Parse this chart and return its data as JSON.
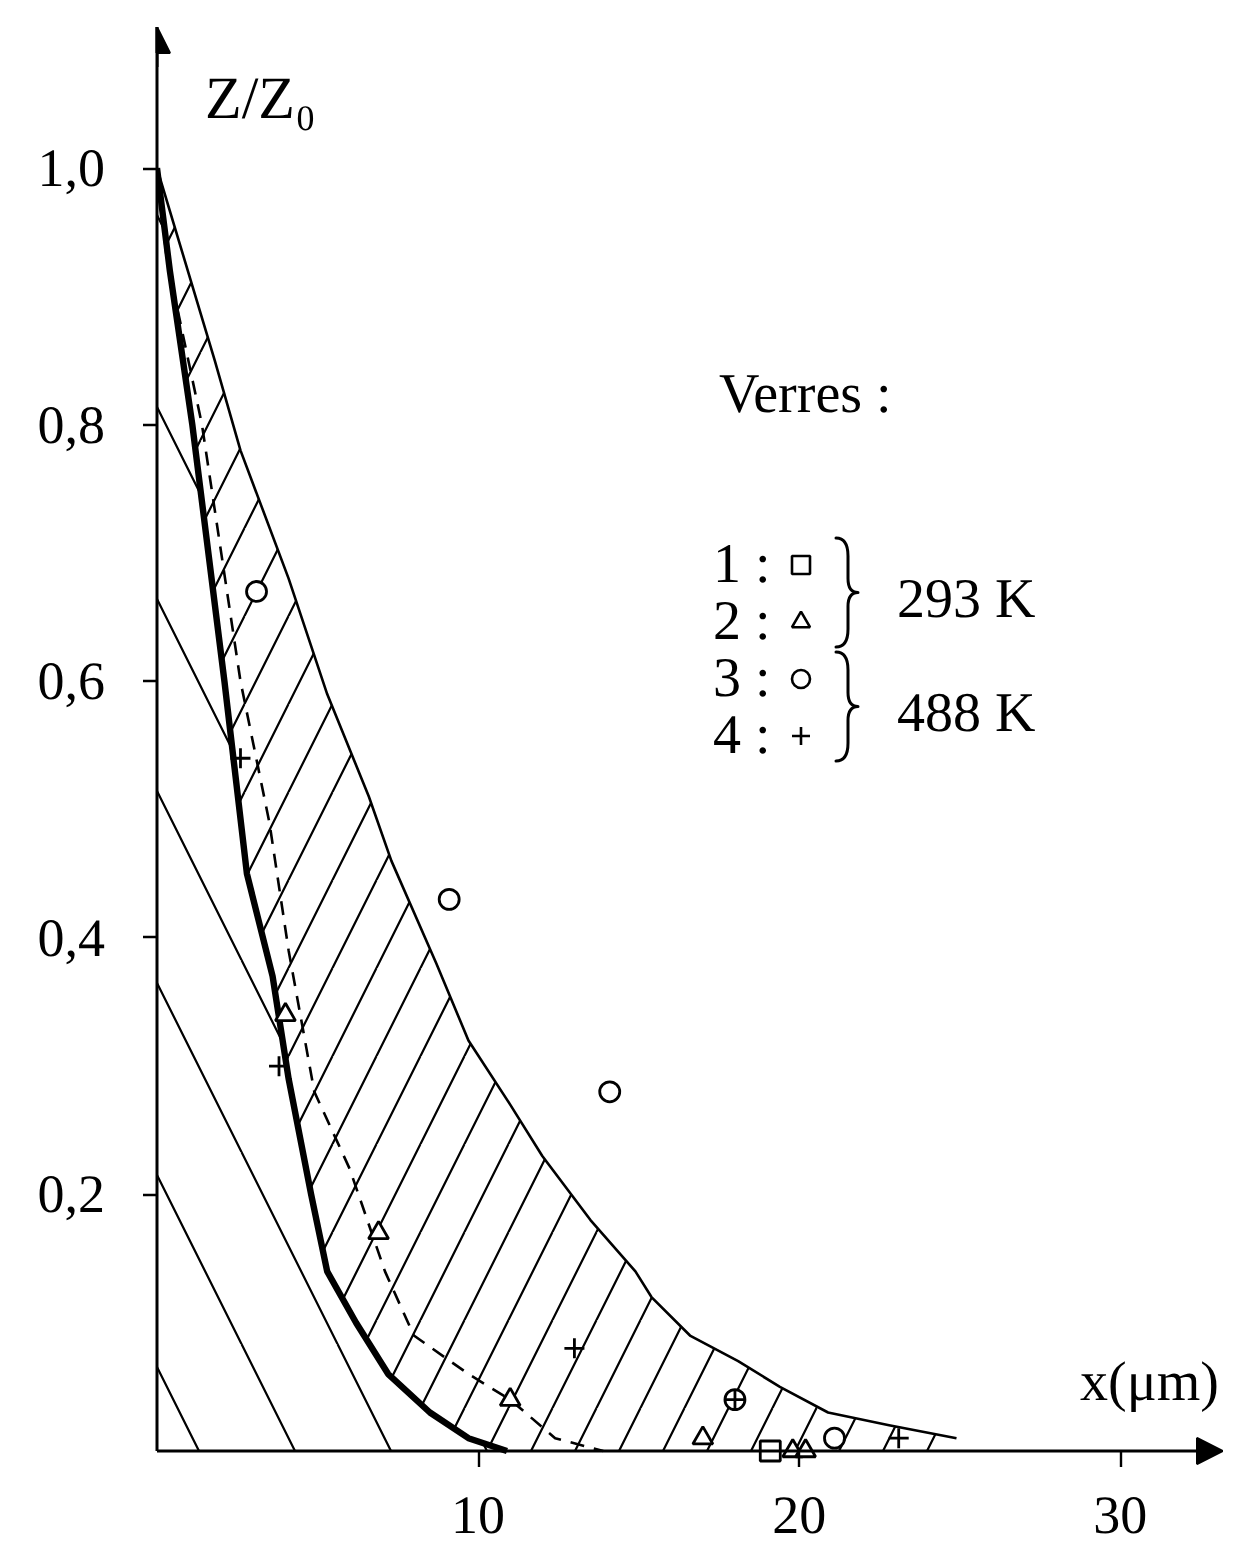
{
  "chart_data": {
    "type": "scatter",
    "xlabel": "x(μm)",
    "ylabel": "Z/Z₀",
    "legend_title": "Verres :",
    "xlim": [
      0,
      33.2
    ],
    "ylim": [
      0,
      1.11
    ],
    "xticks": [
      10,
      20,
      30
    ],
    "yticks": [
      {
        "value": 0.2,
        "label": "0,2"
      },
      {
        "value": 0.4,
        "label": "0,4"
      },
      {
        "value": 0.6,
        "label": "0,6"
      },
      {
        "value": 0.8,
        "label": "0,8"
      },
      {
        "value": 1.0,
        "label": "1,0"
      }
    ],
    "grid": false,
    "legend": "top right",
    "annotations": [
      "293 K",
      "488 K"
    ],
    "series": [
      {
        "type": "area",
        "color": "#000000",
        "x": [
          0,
          1.8,
          2.6,
          4.1,
          5.3,
          6.6,
          7.3,
          8.7,
          9.7,
          11.0,
          12.0,
          13.5,
          14.9,
          15.4,
          16.6,
          18.1,
          19.4,
          20.9,
          22.8,
          24.9
        ],
        "values": [
          1.0,
          0.85,
          0.78,
          0.68,
          0.59,
          0.51,
          0.46,
          0.38,
          0.32,
          0.27,
          0.23,
          0.18,
          0.14,
          0.12,
          0.09,
          0.07,
          0.05,
          0.03,
          0.02,
          0.01
        ]
      },
      {
        "type": "area",
        "color": "#000000",
        "x": [
          0,
          0.4,
          1.1,
          2.1,
          2.8,
          3.6,
          4.1,
          4.8,
          5.3,
          6.2,
          7.2,
          8.5,
          9.7,
          10.9
        ],
        "values": [
          1.0,
          0.92,
          0.8,
          0.6,
          0.45,
          0.37,
          0.29,
          0.2,
          0.14,
          0.1,
          0.06,
          0.03,
          0.01,
          0
        ]
      },
      {
        "type": "line",
        "line_style": "dashed",
        "color": "#000000",
        "x": [
          0,
          0.3,
          1.4,
          2.6,
          3.5,
          4.1,
          4.9,
          6.0,
          7.1,
          8.0,
          9.7,
          11.0,
          12.4,
          13.9
        ],
        "values": [
          1.0,
          0.93,
          0.8,
          0.6,
          0.49,
          0.39,
          0.28,
          0.22,
          0.14,
          0.09,
          0.06,
          0.04,
          0.01,
          0
        ]
      },
      {
        "name": "1 :",
        "marker": "square",
        "color": "#000000",
        "x": [
          19.1
        ],
        "values": [
          0
        ]
      },
      {
        "name": "2 :",
        "marker": "triangle",
        "color": "#000000",
        "x": [
          4.0,
          6.9,
          11.0,
          17.0,
          19.8,
          20.2
        ],
        "values": [
          0.34,
          0.17,
          0.04,
          0.01,
          0,
          0
        ]
      },
      {
        "name": "3 :",
        "marker": "circle",
        "color": "#000000",
        "x": [
          3.1,
          9.1,
          14.1,
          18.0,
          21.1
        ],
        "values": [
          0.67,
          0.43,
          0.28,
          0.04,
          0.01
        ]
      },
      {
        "name": "4 :",
        "marker": "cross",
        "color": "#000000",
        "x": [
          2.6,
          3.8,
          13.0,
          18.0,
          23.1
        ],
        "values": [
          0.54,
          0.3,
          0.08,
          0.04,
          0.01
        ]
      }
    ]
  }
}
